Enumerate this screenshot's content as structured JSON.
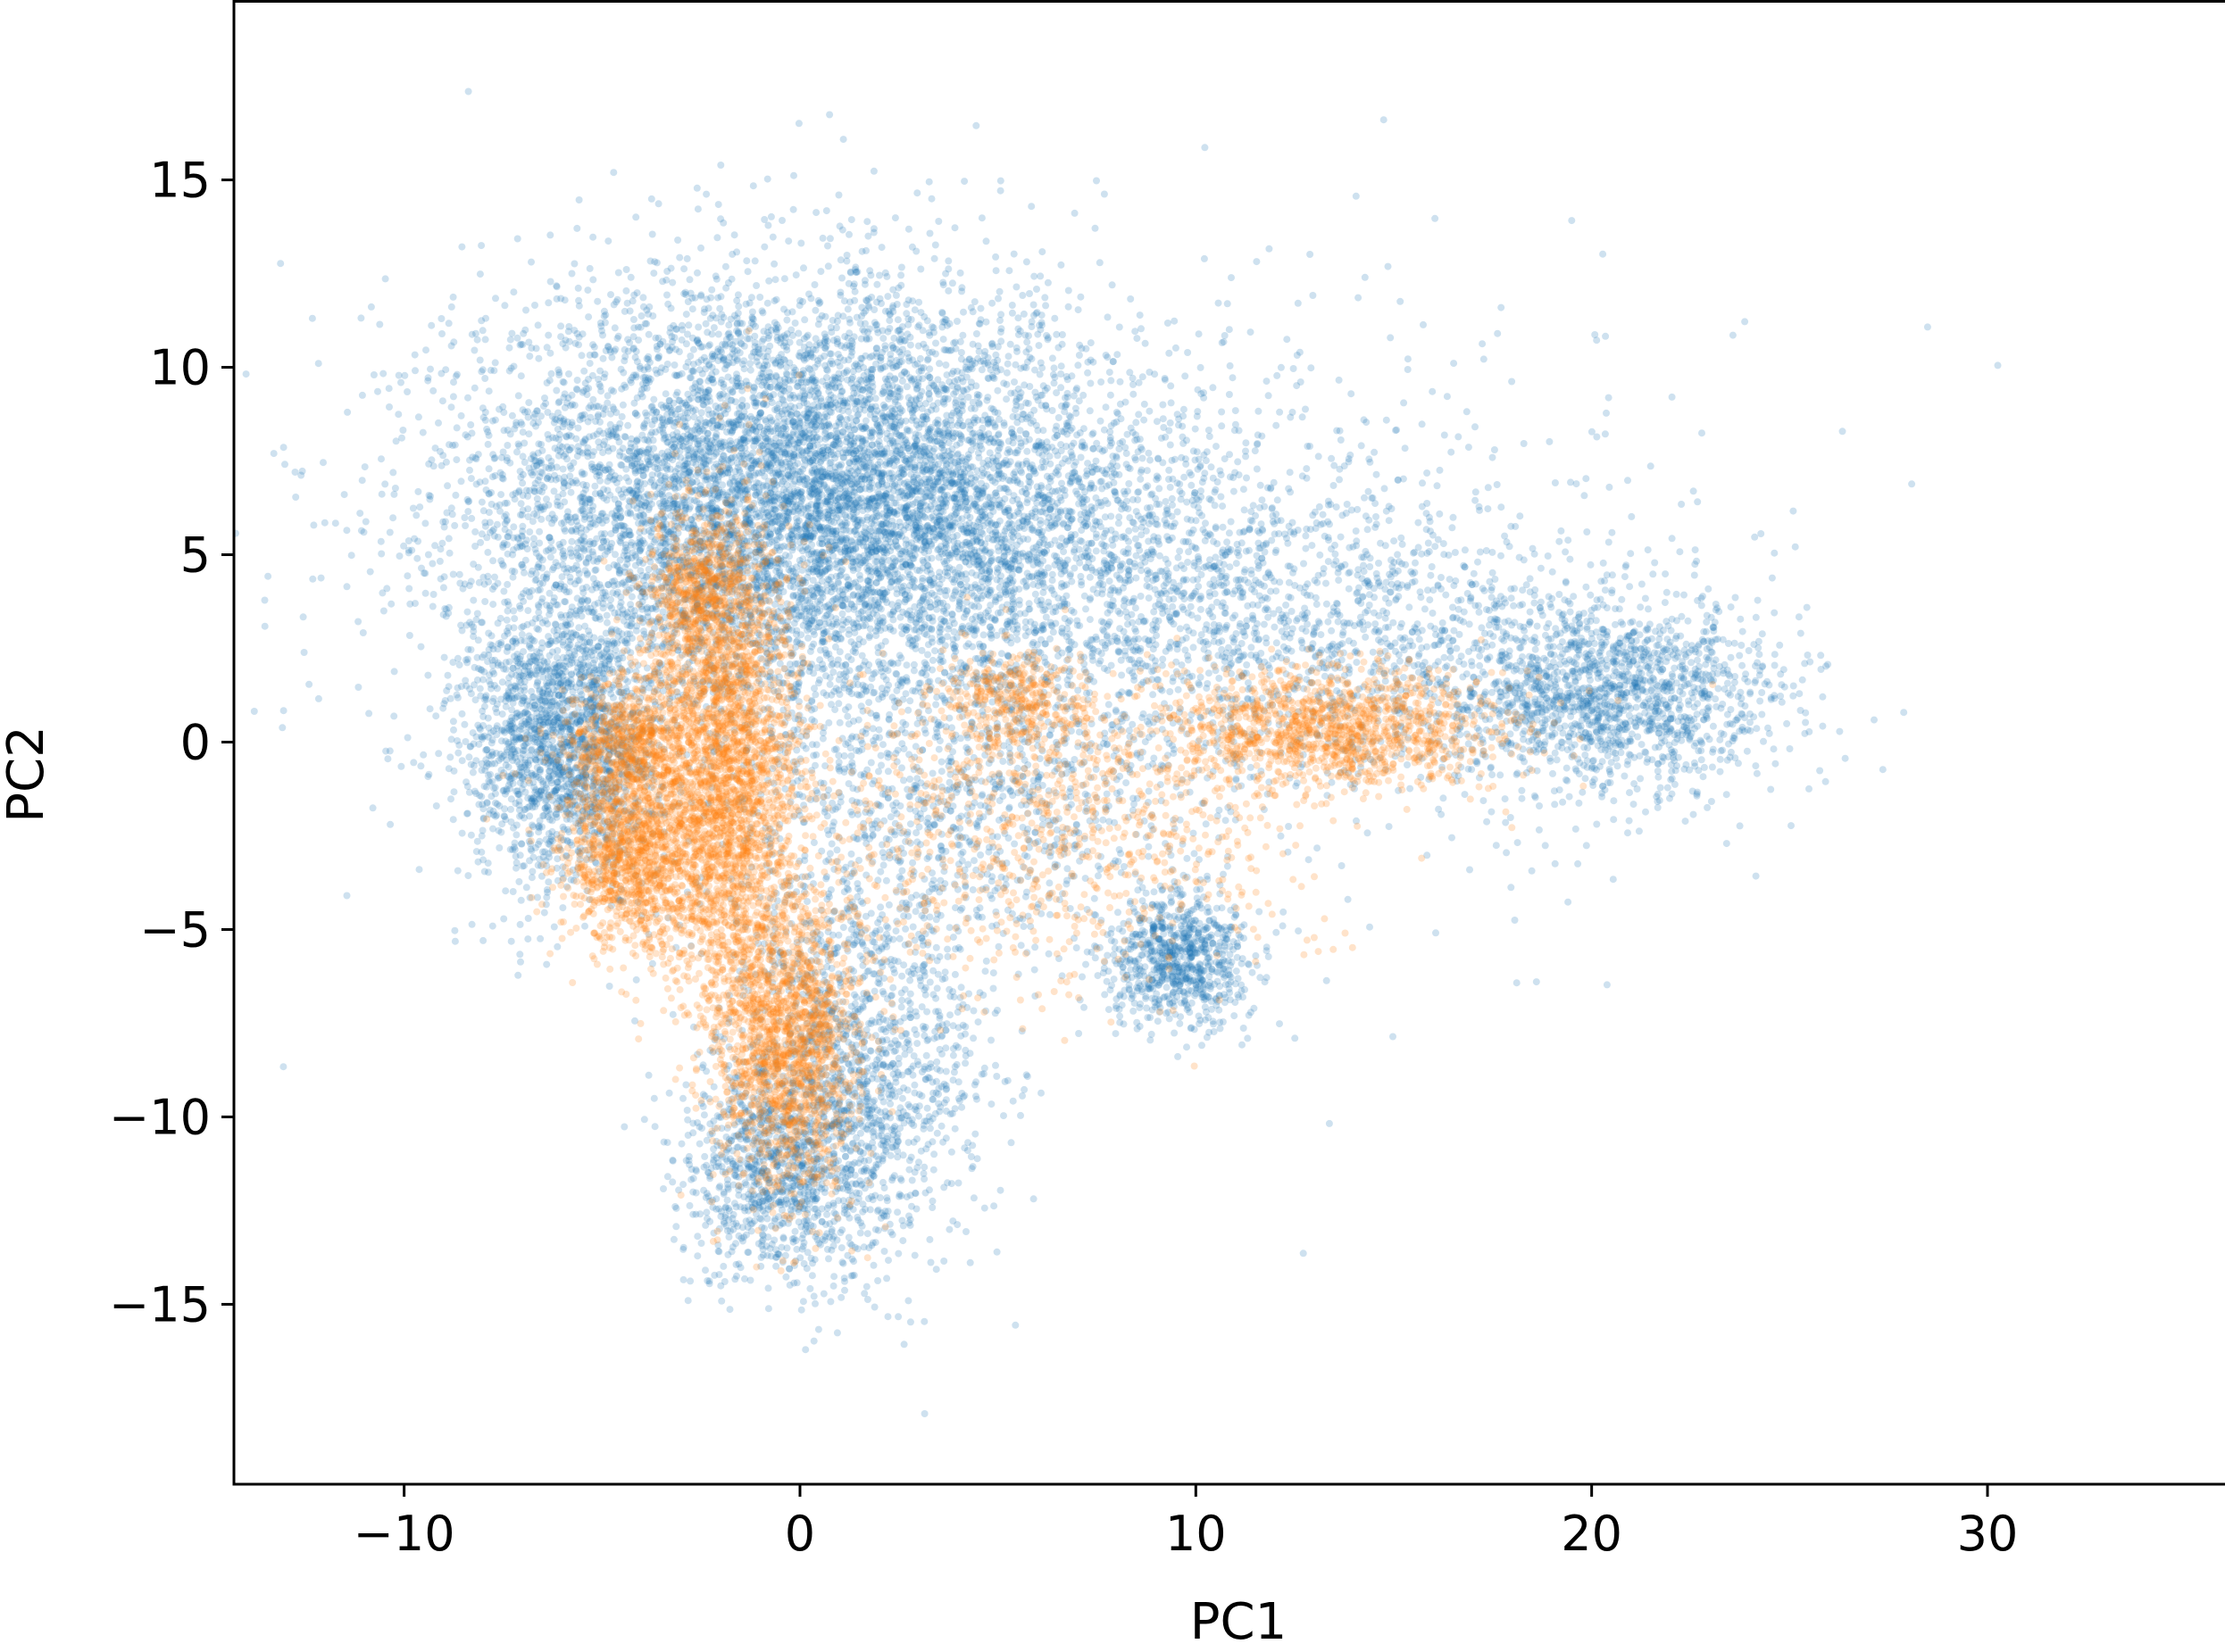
{
  "chart_data": {
    "type": "scatter",
    "title": "",
    "xlabel": "PC1",
    "ylabel": "PC2",
    "xlim": [
      -14.3,
      36.0
    ],
    "ylim": [
      -19.8,
      19.8
    ],
    "grid": false,
    "legend": "none",
    "x_ticks": [
      -10,
      0,
      10,
      20,
      30
    ],
    "x_tick_labels": [
      "−10",
      "0",
      "10",
      "20",
      "30"
    ],
    "y_ticks": [
      -15,
      -10,
      -5,
      0,
      5,
      10,
      15
    ],
    "y_tick_labels": [
      "−15",
      "−10",
      "−5",
      "0",
      "5",
      "10",
      "15"
    ],
    "series": [
      {
        "color": "#1f77b4",
        "clusters": [
          {
            "cx": -1.5,
            "cy": 6.5,
            "sx": 3.6,
            "sy": 2.9,
            "n": 5500
          },
          {
            "cx": -6.0,
            "cy": 0.0,
            "sx": 1.2,
            "sy": 1.9,
            "n": 1800
          },
          {
            "cx": 3.0,
            "cy": 6.5,
            "sx": 2.6,
            "sy": 2.6,
            "n": 2200
          },
          {
            "cx": 8.0,
            "cy": 5.0,
            "sx": 3.2,
            "sy": 2.6,
            "n": 1300
          },
          {
            "cx": 14.0,
            "cy": 2.8,
            "sx": 3.8,
            "sy": 2.0,
            "n": 1100
          },
          {
            "cx": 20.5,
            "cy": 1.2,
            "sx": 2.2,
            "sy": 1.3,
            "n": 1500
          },
          {
            "cx": 1.5,
            "cy": -8.5,
            "sx": 1.6,
            "sy": 2.6,
            "n": 1400
          },
          {
            "cx": -0.5,
            "cy": -11.5,
            "sx": 1.3,
            "sy": 1.4,
            "n": 900
          },
          {
            "cx": 9.5,
            "cy": -5.8,
            "sx": 0.9,
            "sy": 0.9,
            "n": 800
          },
          {
            "cx": 4.0,
            "cy": -1.5,
            "sx": 3.0,
            "sy": 2.2,
            "n": 900
          },
          {
            "cx": 6.0,
            "cy": 4.0,
            "sx": 9.0,
            "sy": 5.0,
            "n": 700
          }
        ]
      },
      {
        "color": "#ff7f0e",
        "clusters": [
          {
            "cx": -1.8,
            "cy": -1.0,
            "sx": 0.9,
            "sy": 3.2,
            "n": 2600
          },
          {
            "cx": -0.3,
            "cy": -8.0,
            "sx": 0.9,
            "sy": 2.0,
            "n": 1600
          },
          {
            "cx": -4.2,
            "cy": -3.0,
            "sx": 0.9,
            "sy": 1.3,
            "n": 1200
          },
          {
            "cx": -4.2,
            "cy": 0.0,
            "sx": 0.8,
            "sy": 0.9,
            "n": 700
          },
          {
            "cx": 13.5,
            "cy": 0.3,
            "sx": 2.2,
            "sy": 0.8,
            "n": 1300
          },
          {
            "cx": 5.5,
            "cy": 1.0,
            "sx": 1.0,
            "sy": 0.8,
            "n": 400
          },
          {
            "cx": 6.0,
            "cy": -2.5,
            "sx": 3.5,
            "sy": 2.0,
            "n": 900
          },
          {
            "cx": -2.5,
            "cy": 4.0,
            "sx": 0.7,
            "sy": 1.2,
            "n": 600
          }
        ]
      }
    ]
  }
}
